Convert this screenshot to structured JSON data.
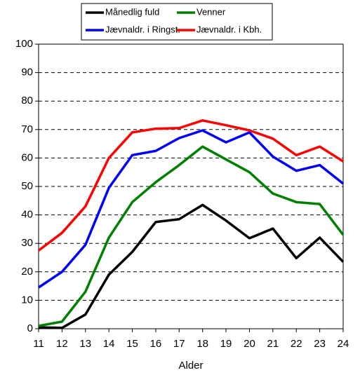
{
  "chart_data": {
    "type": "line",
    "x": [
      11,
      12,
      13,
      14,
      15,
      16,
      17,
      18,
      19,
      20,
      21,
      22,
      23,
      24
    ],
    "xlim": [
      11,
      24
    ],
    "xticks": [
      11,
      12,
      13,
      14,
      15,
      16,
      17,
      18,
      19,
      20,
      21,
      22,
      23,
      24
    ],
    "x_label": "Alder",
    "ylim": [
      0,
      100
    ],
    "yticks": [
      0,
      10,
      20,
      30,
      40,
      50,
      60,
      70,
      80,
      90,
      100
    ],
    "grid": true,
    "legend": "top",
    "series": [
      {
        "name": "Månedlig fuld",
        "color": "#000000",
        "values": [
          0.5,
          0.3,
          5,
          19,
          27,
          37.5,
          38.5,
          43.5,
          38,
          31.8,
          35.2,
          24.8,
          32,
          23.5
        ]
      },
      {
        "name": "Venner",
        "color": "#008000",
        "values": [
          1,
          2.5,
          13,
          32,
          44.5,
          51.5,
          57.5,
          64,
          59.5,
          55,
          47.5,
          44.5,
          43.8,
          33
        ]
      },
      {
        "name": "Jævnaldr. i Ringst.",
        "color": "#0000ff",
        "values": [
          14.5,
          20,
          29.5,
          49.5,
          61,
          62.5,
          67,
          69.7,
          65.5,
          69,
          60.5,
          55.5,
          57.5,
          51
        ]
      },
      {
        "name": "Jævnaldr. i Kbh.",
        "color": "#ff0000",
        "values": [
          27.5,
          33.7,
          43,
          60,
          69,
          70.3,
          70.5,
          73.2,
          71.5,
          69.7,
          66.8,
          61,
          64,
          58.8
        ]
      }
    ]
  }
}
